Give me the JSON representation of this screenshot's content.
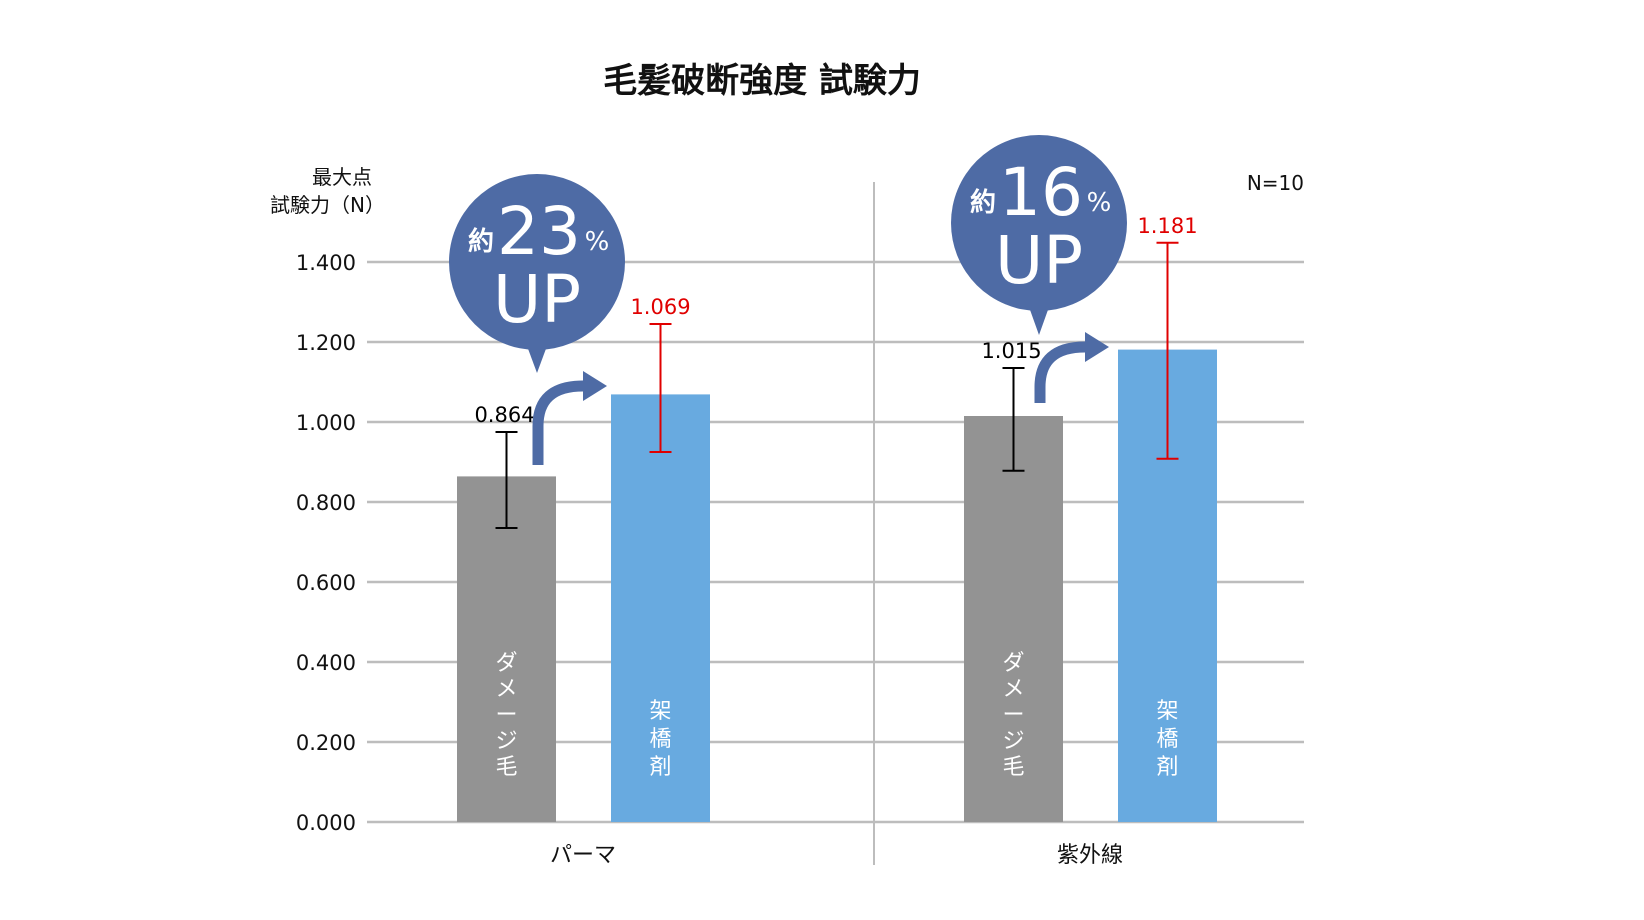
{
  "chart_data": {
    "type": "bar",
    "title": "毛髪破断強度 試験力",
    "ylabel_lines": [
      "最大点",
      "試験力（N）"
    ],
    "note": "N=10",
    "ylim": [
      0,
      1.4
    ],
    "yticks": [
      "0.000",
      "0.200",
      "0.400",
      "0.600",
      "0.800",
      "1.000",
      "1.200",
      "1.400"
    ],
    "grid": true,
    "categories": [
      "パーマ",
      "紫外線"
    ],
    "series": [
      {
        "name": "ダメージ毛",
        "color": "#939393",
        "label_color": "#000000",
        "error_color": "#000000",
        "values": [
          0.864,
          1.015
        ],
        "labels": [
          "0.864",
          "1.015"
        ],
        "error_high": [
          0.975,
          1.135
        ],
        "error_low": [
          0.735,
          0.878
        ]
      },
      {
        "name": "架橋剤",
        "color": "#68aae0",
        "label_color": "#e00000",
        "error_color": "#e00000",
        "values": [
          1.069,
          1.181
        ],
        "labels": [
          "1.069",
          "1.181"
        ],
        "error_high": [
          1.245,
          1.448
        ],
        "error_low": [
          0.925,
          0.908
        ]
      }
    ],
    "annotations": [
      {
        "prefix": "約",
        "number": "23",
        "unit": "%",
        "text": "UP",
        "color": "#4e6ba5"
      },
      {
        "prefix": "約",
        "number": "16",
        "unit": "%",
        "text": "UP",
        "color": "#4e6ba5"
      }
    ]
  }
}
